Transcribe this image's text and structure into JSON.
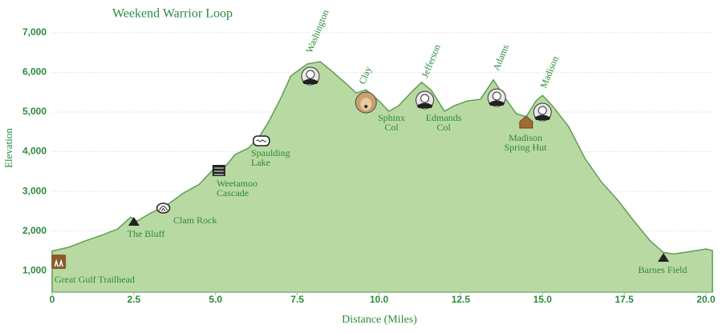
{
  "chart_data": {
    "type": "area",
    "title": "Weekend Warrior Loop",
    "x_label": "Distance (Miles)",
    "y_label": "Elevation",
    "x": [
      0,
      0.5,
      1.0,
      1.5,
      2.0,
      2.4,
      2.6,
      3.0,
      3.5,
      4.0,
      4.5,
      4.9,
      5.3,
      5.6,
      6.0,
      6.3,
      6.6,
      7.0,
      7.3,
      7.8,
      8.2,
      8.5,
      9.0,
      9.3,
      9.6,
      10.0,
      10.3,
      10.6,
      11.0,
      11.3,
      11.6,
      12.0,
      12.3,
      12.7,
      13.1,
      13.5,
      13.8,
      14.2,
      14.5,
      14.8,
      15.0,
      15.3,
      15.8,
      16.3,
      16.8,
      17.3,
      17.8,
      18.3,
      18.7,
      19.0,
      19.5,
      20.0,
      20.2
    ],
    "values": [
      1500,
      1590,
      1750,
      1890,
      2050,
      2350,
      2250,
      2450,
      2650,
      2950,
      3180,
      3530,
      3630,
      3930,
      4090,
      4330,
      4720,
      5360,
      5910,
      6210,
      6270,
      6070,
      5710,
      5480,
      5560,
      5280,
      5020,
      5160,
      5510,
      5750,
      5550,
      5020,
      5160,
      5280,
      5320,
      5810,
      5420,
      4960,
      4880,
      5280,
      5420,
      5160,
      4630,
      3830,
      3240,
      2780,
      2250,
      1750,
      1460,
      1420,
      1480,
      1550,
      1510
    ],
    "color": "#b9d9a3",
    "line_color": "#5e9e52",
    "xlim": [
      0,
      20.2
    ],
    "ylim": [
      460,
      7300
    ],
    "xticks": [
      0,
      2.5,
      {
        "value": 5,
        "label": "5.0"
      },
      7.5,
      {
        "value": 10,
        "label": "10.0"
      },
      12.5,
      {
        "value": 15,
        "label": "15.0"
      },
      17.5,
      {
        "value": 20,
        "label": "20.0"
      }
    ],
    "yticks": [
      {
        "value": 1000,
        "label": "1,000"
      },
      {
        "value": 2000,
        "label": "2,000"
      },
      {
        "value": 3000,
        "label": "3,000"
      },
      {
        "value": 4000,
        "label": "4,000"
      },
      {
        "value": 5000,
        "label": "5,000"
      },
      {
        "value": 6000,
        "label": "6,000"
      },
      {
        "value": 7000,
        "label": "7,000"
      }
    ],
    "grid": true,
    "annotations": [
      {
        "lines": [
          "Great Gulf Trailhead"
        ],
        "x": 0.2
      },
      {
        "lines": [
          "The Bluff"
        ],
        "x": 2.5
      },
      {
        "lines": [
          "Clam Rock"
        ],
        "x": 3.4
      },
      {
        "lines": [
          "Weetamoo",
          "Cascade"
        ],
        "x": 5.1
      },
      {
        "lines": [
          "Spaulding",
          "Lake"
        ],
        "x": 6.4
      },
      {
        "lines": [
          "Washington"
        ],
        "x": 7.9
      },
      {
        "lines": [
          "Clay"
        ],
        "x": 9.6
      },
      {
        "lines": [
          "Sphinx",
          "Col"
        ],
        "x": 10.3
      },
      {
        "lines": [
          "Jefferson"
        ],
        "x": 11.4
      },
      {
        "lines": [
          "Edmands",
          "Col"
        ],
        "x": 12.0
      },
      {
        "lines": [
          "Adams"
        ],
        "x": 13.6
      },
      {
        "lines": [
          "Madison",
          "Spring Hut"
        ],
        "x": 14.5
      },
      {
        "lines": [
          "Madison"
        ],
        "x": 15.0
      },
      {
        "lines": [
          "Barnes Field"
        ],
        "x": 18.7
      }
    ]
  }
}
